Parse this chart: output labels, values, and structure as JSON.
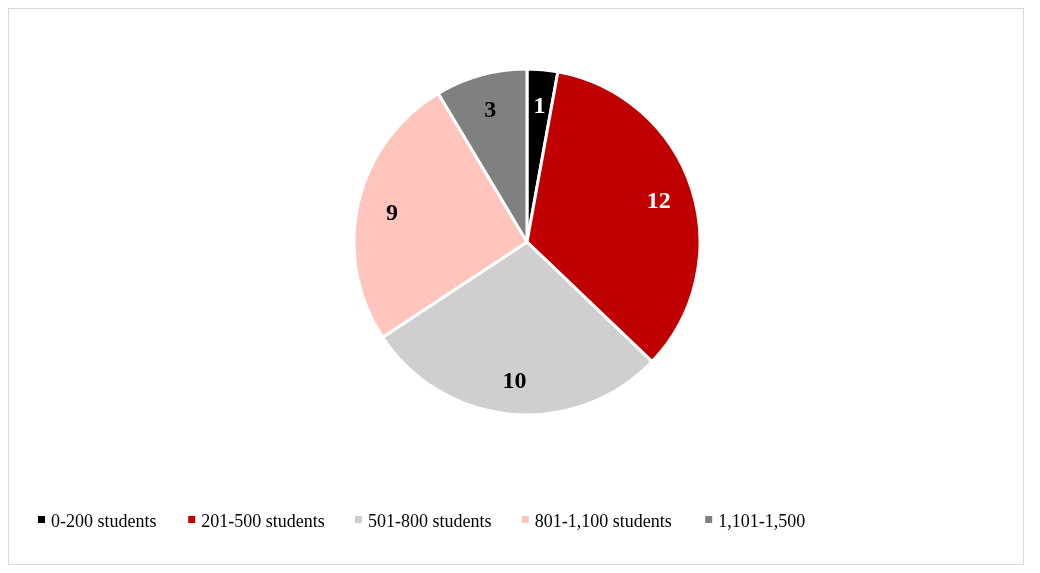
{
  "chart_data": {
    "type": "pie",
    "categories": [
      "0-200 students",
      "201-500 students",
      "501-800 students",
      "801-1,100 students",
      "1,101-1,500"
    ],
    "values": [
      1,
      12,
      10,
      9,
      3
    ],
    "colors": [
      "#000000",
      "#c00000",
      "#d0cece",
      "#ffc5bc",
      "#808080"
    ],
    "data_labels": true,
    "legend": "bottom"
  }
}
